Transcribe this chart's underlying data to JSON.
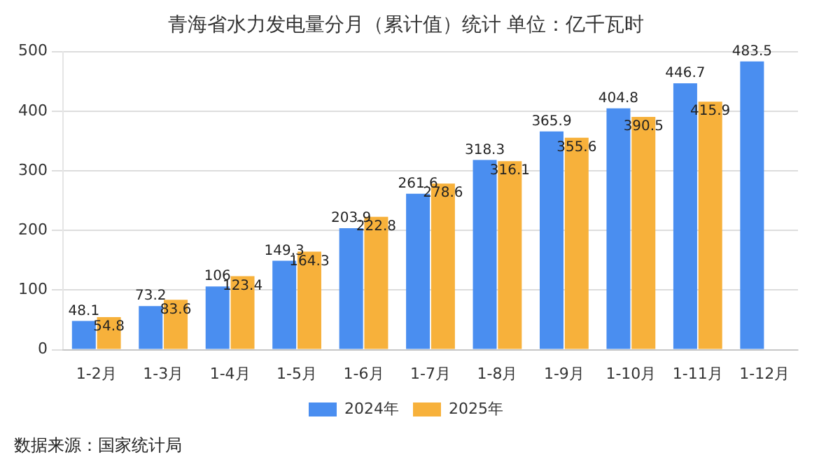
{
  "chart_data": {
    "type": "bar",
    "title": "青海省水力发电量分月（累计值）统计 单位：亿千瓦时",
    "categories": [
      "1-2月",
      "1-3月",
      "1-4月",
      "1-5月",
      "1-6月",
      "1-7月",
      "1-8月",
      "1-9月",
      "1-10月",
      "1-11月",
      "1-12月"
    ],
    "series": [
      {
        "name": "2024年",
        "color": "#4a8ef0",
        "values": [
          48.1,
          73.2,
          106,
          149.3,
          203.9,
          261.6,
          318.3,
          365.9,
          404.8,
          446.7,
          483.5
        ]
      },
      {
        "name": "2025年",
        "color": "#f7b13b",
        "values": [
          54.8,
          83.6,
          123.4,
          164.3,
          222.8,
          278.6,
          316.1,
          355.6,
          390.5,
          415.9,
          null
        ]
      }
    ],
    "ylim": [
      0,
      500
    ],
    "yticks": [
      0,
      100,
      200,
      300,
      400,
      500
    ],
    "grid": "y",
    "legend": "bottom",
    "data_labels": true,
    "annotations": [
      "数据来源：国家统计局"
    ]
  }
}
